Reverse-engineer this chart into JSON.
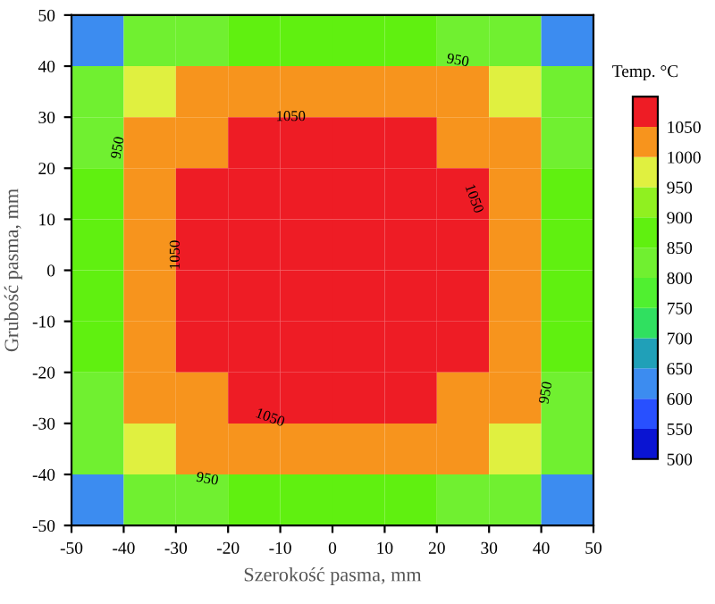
{
  "chart_data": {
    "type": "heatmap",
    "xlabel": "Szerokość pasma, mm",
    "ylabel": "Grubość pasma, mm",
    "clabel": "Temp. °C",
    "x": [
      -45,
      -35,
      -25,
      -15,
      -5,
      5,
      15,
      25,
      35,
      45
    ],
    "y": [
      45,
      35,
      25,
      15,
      5,
      -5,
      -15,
      -25,
      -35,
      -45
    ],
    "cells": [
      [
        620,
        800,
        840,
        855,
        860,
        860,
        855,
        840,
        800,
        620
      ],
      [
        800,
        975,
        1005,
        1015,
        1020,
        1020,
        1015,
        1005,
        975,
        800
      ],
      [
        840,
        1005,
        1045,
        1060,
        1065,
        1065,
        1060,
        1045,
        1005,
        840
      ],
      [
        855,
        1015,
        1060,
        1075,
        1078,
        1078,
        1075,
        1060,
        1015,
        855
      ],
      [
        860,
        1020,
        1065,
        1078,
        1080,
        1080,
        1078,
        1065,
        1020,
        860
      ],
      [
        860,
        1020,
        1065,
        1078,
        1080,
        1080,
        1078,
        1065,
        1020,
        860
      ],
      [
        855,
        1015,
        1060,
        1075,
        1078,
        1078,
        1075,
        1060,
        1015,
        855
      ],
      [
        840,
        1005,
        1045,
        1060,
        1065,
        1065,
        1060,
        1045,
        1005,
        840
      ],
      [
        800,
        975,
        1005,
        1015,
        1020,
        1020,
        1015,
        1005,
        975,
        800
      ],
      [
        620,
        800,
        840,
        855,
        860,
        860,
        855,
        840,
        800,
        620
      ]
    ],
    "colors": [
      "#0a14d2",
      "#2850ff",
      "#3c8cf0",
      "#20a0b8",
      "#30e060",
      "#50f030",
      "#70f030",
      "#60f010",
      "#90f020",
      "#e0f040",
      "#f7941d",
      "#ee1c25"
    ],
    "clim": [
      500,
      1100
    ],
    "cticks": [
      500,
      550,
      600,
      650,
      700,
      750,
      800,
      850,
      900,
      950,
      1000,
      1050
    ],
    "xlim": [
      -50,
      50
    ],
    "ylim": [
      -50,
      50
    ],
    "xticks": [
      -50,
      -40,
      -30,
      -20,
      -10,
      0,
      10,
      20,
      30,
      40,
      50
    ],
    "yticks": [
      -50,
      -40,
      -30,
      -20,
      -10,
      0,
      10,
      20,
      30,
      40,
      50
    ],
    "annotations": [
      "1050",
      "1050",
      "1050",
      "1050",
      "950",
      "950",
      "950",
      "950"
    ],
    "grid": false
  }
}
